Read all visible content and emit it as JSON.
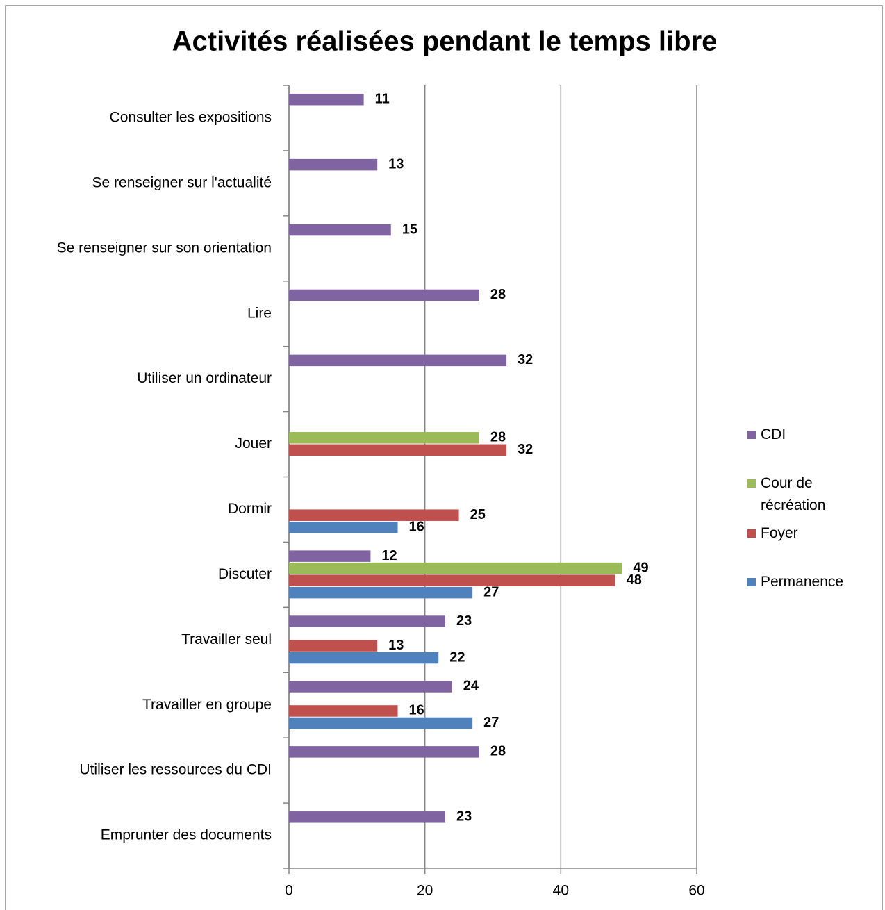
{
  "chart_data": {
    "type": "bar",
    "orientation": "horizontal",
    "title": "Activités réalisées pendant le temps libre",
    "categories": [
      "Consulter les expositions",
      "Se renseigner sur l'actualité",
      "Se renseigner sur son orientation",
      "Lire",
      "Utiliser un ordinateur",
      "Jouer",
      "Dormir",
      "Discuter",
      "Travailler seul",
      "Travailler en groupe",
      "Utiliser les ressources du CDI",
      "Emprunter des documents"
    ],
    "series": [
      {
        "name": "CDI",
        "color": "#8064a2",
        "values": [
          11,
          13,
          15,
          28,
          32,
          null,
          null,
          12,
          23,
          24,
          28,
          23
        ]
      },
      {
        "name": "Cour de récréation",
        "color": "#9bbb59",
        "values": [
          null,
          null,
          null,
          null,
          null,
          28,
          null,
          49,
          null,
          null,
          null,
          null
        ]
      },
      {
        "name": "Foyer",
        "color": "#c0504d",
        "values": [
          null,
          null,
          null,
          null,
          null,
          32,
          25,
          48,
          13,
          16,
          null,
          null
        ]
      },
      {
        "name": "Permanence",
        "color": "#4f81bd",
        "values": [
          null,
          null,
          null,
          null,
          null,
          null,
          16,
          27,
          22,
          27,
          null,
          null
        ]
      }
    ],
    "xlim": [
      0,
      60
    ],
    "xticks": [
      0,
      20,
      40,
      60
    ],
    "grid": true,
    "legend": "right"
  }
}
